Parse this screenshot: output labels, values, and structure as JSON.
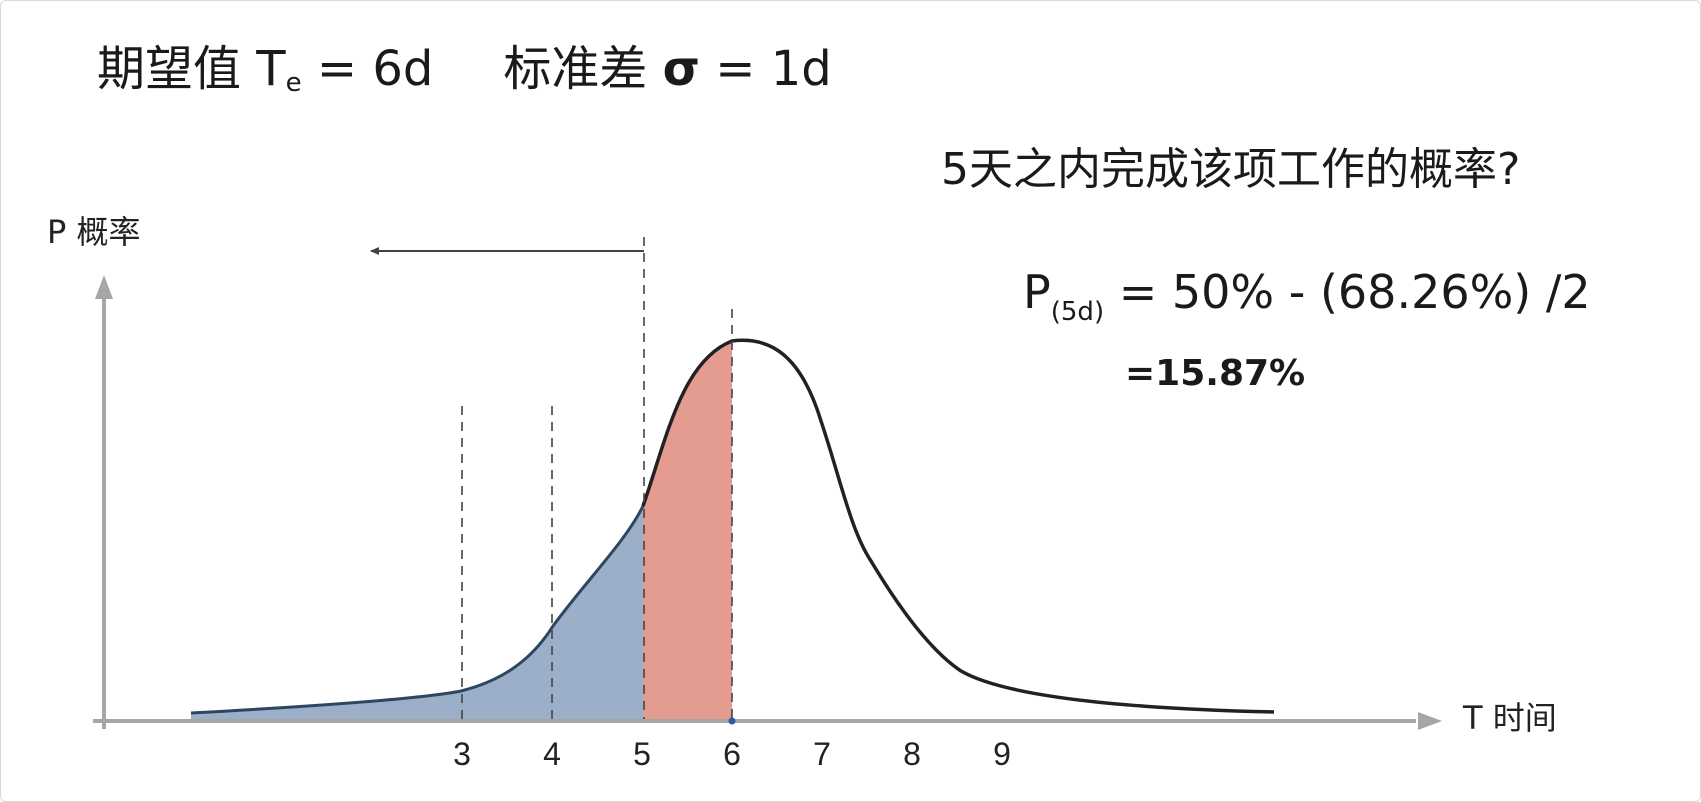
{
  "header": {
    "expectation_label": "期望值 T",
    "expectation_subscript": "e",
    "expectation_value": " = 6d",
    "stddev_label": "标准差 ",
    "stddev_symbol": "σ",
    "stddev_value": " = 1d"
  },
  "question": "5天之内完成该项工作的概率?",
  "formula": {
    "lead": "P",
    "subscript": "(5d)",
    "rest": " = 50% - (68.26%) /2"
  },
  "result": "=15.87%",
  "chart_data": {
    "type": "area",
    "y_axis_label": "P 概率",
    "x_axis_label": "T 时间",
    "x_ticks": [
      "3",
      "4",
      "5",
      "6",
      "7",
      "8",
      "9"
    ],
    "mean": 6,
    "std_dev": 1,
    "dashed_markers_x": [
      3,
      4,
      5,
      6
    ],
    "shaded_regions": [
      {
        "from": "left tail",
        "to": 5,
        "color": "#9bb0c8"
      },
      {
        "from": 5,
        "to": 6,
        "color": "#e49c90"
      }
    ],
    "arrow": {
      "from_x": 5,
      "direction": "left"
    },
    "colors": {
      "curve": "#222222",
      "axis": "#a6a6a6",
      "left_tail_fill": "#9bb0c8",
      "one_sigma_fill": "#e49c90",
      "tail_edge": "#2f4661"
    }
  }
}
